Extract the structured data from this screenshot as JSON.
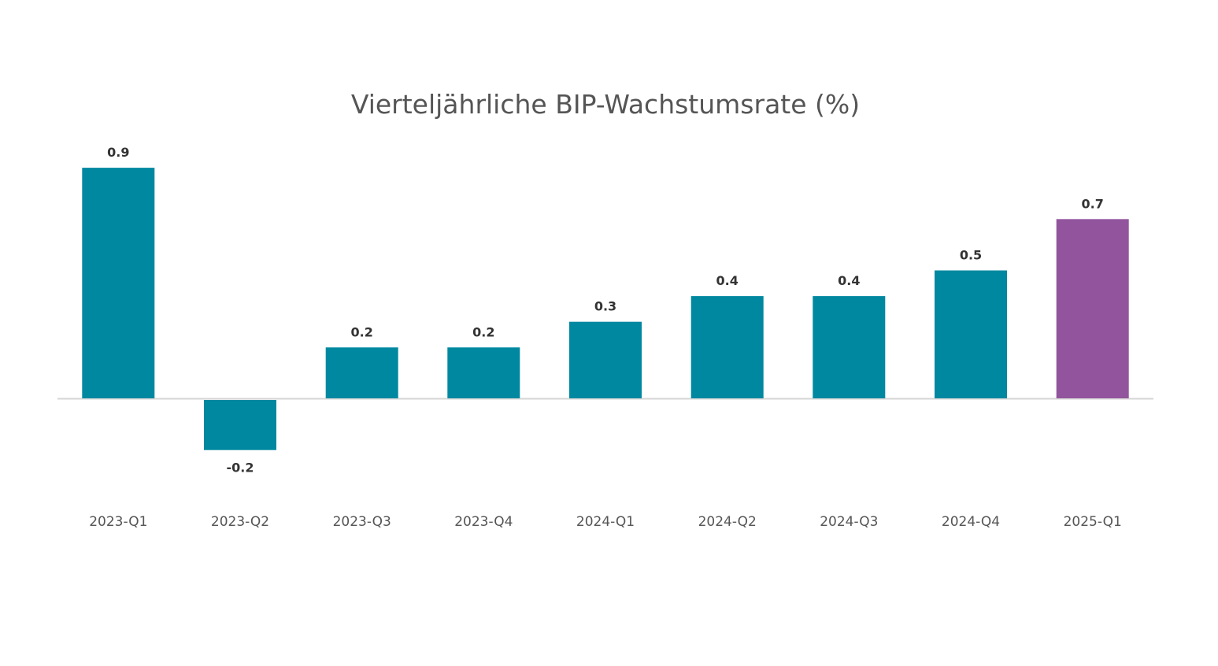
{
  "chart_data": {
    "type": "bar",
    "title": "Vierteljährliche BIP-Wachstumsrate (%)",
    "xlabel": "",
    "ylabel": "",
    "categories": [
      "2023-Q1",
      "2023-Q2",
      "2023-Q3",
      "2023-Q4",
      "2024-Q1",
      "2024-Q2",
      "2024-Q3",
      "2024-Q4",
      "2025-Q1"
    ],
    "values": [
      0.9,
      -0.2,
      0.2,
      0.2,
      0.3,
      0.4,
      0.4,
      0.5,
      0.7
    ],
    "data_labels": [
      "0.9",
      "-0.2",
      "0.2",
      "0.2",
      "0.3",
      "0.4",
      "0.4",
      "0.5",
      "0.7"
    ],
    "ylim": [
      -0.2,
      0.9
    ],
    "grid": false,
    "legend": "none",
    "colors": {
      "default_bar": "#0088a0",
      "highlight_bar": "#92559d",
      "zero_line": "#d6d6d6"
    },
    "highlight_index": 8
  }
}
